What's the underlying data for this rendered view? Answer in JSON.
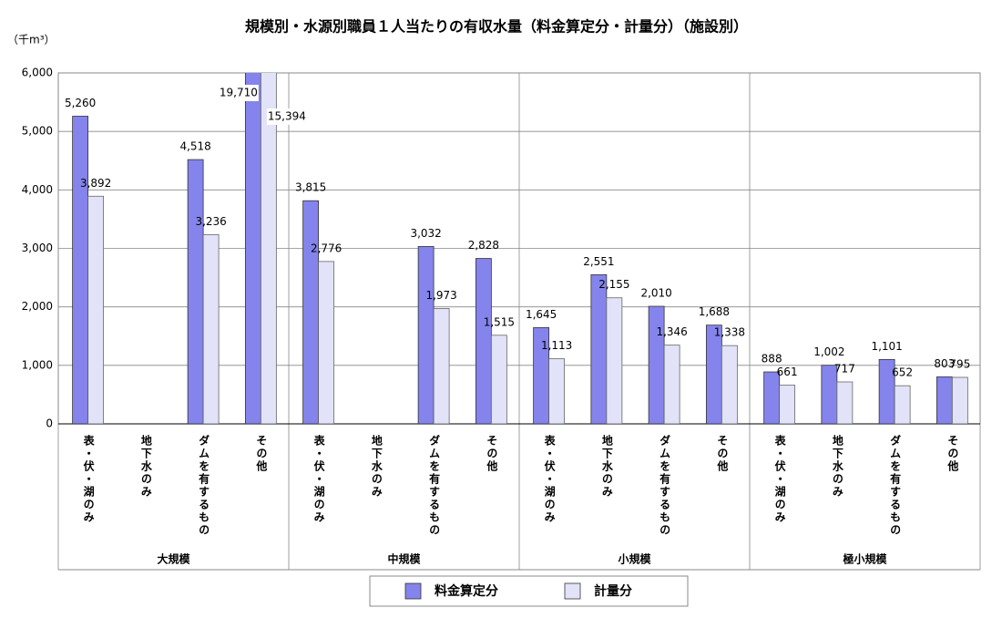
{
  "chart_data": {
    "type": "bar",
    "title": "規模別・水源別職員１人当たりの有収水量（料金算定分・計量分）（施設別）",
    "y_unit": "（千m³）",
    "categories": [
      "表・伏・湖のみ",
      "地下水のみ",
      "ダムを有するもの",
      "その他",
      "表・伏・湖のみ",
      "地下水のみ",
      "ダムを有するもの",
      "その他",
      "表・伏・湖のみ",
      "地下水のみ",
      "ダムを有するもの",
      "その他",
      "表・伏・湖のみ",
      "地下水のみ",
      "ダムを有するもの",
      "その他"
    ],
    "groups": [
      "大規模",
      "中規模",
      "小規模",
      "極小規模"
    ],
    "series": [
      {
        "name": "料金算定分",
        "color": "#8484ec",
        "values": [
          5260,
          null,
          4518,
          19710,
          3815,
          null,
          3032,
          2828,
          1645,
          2551,
          2010,
          1688,
          888,
          1002,
          1101,
          803
        ],
        "value_labels": [
          "5,260",
          null,
          "4,518",
          "19,710",
          "3,815",
          null,
          "3,032",
          "2,828",
          "1,645",
          "2,551",
          "2,010",
          "1,688",
          "888",
          "1,002",
          "1,101",
          "803"
        ]
      },
      {
        "name": "計量分",
        "color": "#e2e2f8",
        "values": [
          3892,
          null,
          3236,
          15394,
          2776,
          null,
          1973,
          1515,
          1113,
          2155,
          1346,
          1338,
          661,
          717,
          652,
          795
        ],
        "value_labels": [
          "3,892",
          null,
          "3,236",
          "15,394",
          "2,776",
          null,
          "1,973",
          "1,515",
          "1,113",
          "2,155",
          "1,346",
          "1,338",
          "661",
          "717",
          "652",
          "795"
        ]
      }
    ],
    "ylim": [
      0,
      6000
    ],
    "yticks": [
      0,
      {
        "value": 1000,
        "label": "1,000"
      },
      {
        "value": 2000,
        "label": "2,000"
      },
      {
        "value": 3000,
        "label": "3,000"
      },
      {
        "value": 4000,
        "label": "4,000"
      },
      {
        "value": 5000,
        "label": "5,000"
      },
      {
        "value": 6000,
        "label": "6,000"
      }
    ],
    "grid": true
  }
}
